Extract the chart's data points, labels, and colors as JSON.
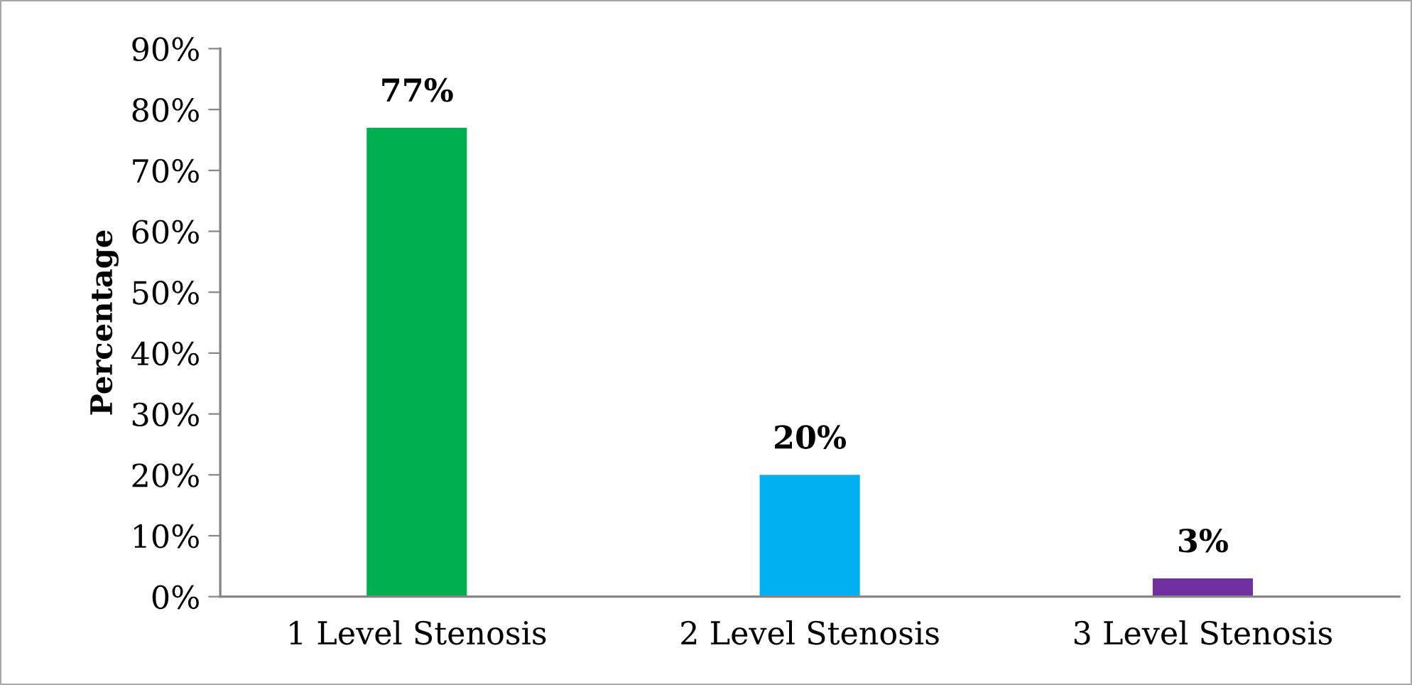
{
  "chart_data": {
    "type": "bar",
    "ylabel": "Percentage",
    "categories": [
      "1 Level Stenosis",
      "2 Level Stenosis",
      "3 Level Stenosis"
    ],
    "values": [
      77,
      20,
      3
    ],
    "colors": [
      "#00b050",
      "#00b0f0",
      "#7030a0"
    ],
    "value_labels": [
      "77%",
      "20%",
      "3%"
    ],
    "ylim": [
      0,
      90
    ],
    "yticks": [
      {
        "value": 0,
        "label": "0%"
      },
      {
        "value": 10,
        "label": "10%"
      },
      {
        "value": 20,
        "label": "20%"
      },
      {
        "value": 30,
        "label": "30%"
      },
      {
        "value": 40,
        "label": "40%"
      },
      {
        "value": 50,
        "label": "50%"
      },
      {
        "value": 60,
        "label": "60%"
      },
      {
        "value": 70,
        "label": "70%"
      },
      {
        "value": 80,
        "label": "80%"
      },
      {
        "value": 90,
        "label": "90%"
      }
    ],
    "grid": false,
    "legend": false
  }
}
